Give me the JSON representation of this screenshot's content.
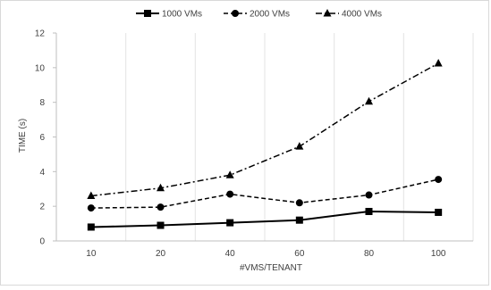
{
  "chart_data": {
    "type": "line",
    "xlabel": "#VMS/TENANT",
    "ylabel": "TIME (s)",
    "categories": [
      "10",
      "20",
      "40",
      "60",
      "80",
      "100"
    ],
    "ylim": [
      0,
      12
    ],
    "yticks": [
      "0",
      "2",
      "4",
      "6",
      "8",
      "10",
      "12"
    ],
    "grid": "vertical",
    "legend_position": "top",
    "series": [
      {
        "name": "1000 VMs",
        "values": [
          0.8,
          0.9,
          1.05,
          1.2,
          1.7,
          1.65
        ],
        "marker": "square",
        "dash": "solid",
        "color": "#000000"
      },
      {
        "name": "2000 VMs",
        "values": [
          1.9,
          1.95,
          2.7,
          2.2,
          2.65,
          3.55
        ],
        "marker": "circle",
        "dash": "dashed",
        "color": "#000000"
      },
      {
        "name": "4000 VMs",
        "values": [
          2.6,
          3.05,
          3.8,
          5.45,
          8.05,
          10.25
        ],
        "marker": "triangle",
        "dash": "dashdot",
        "color": "#000000"
      }
    ]
  }
}
